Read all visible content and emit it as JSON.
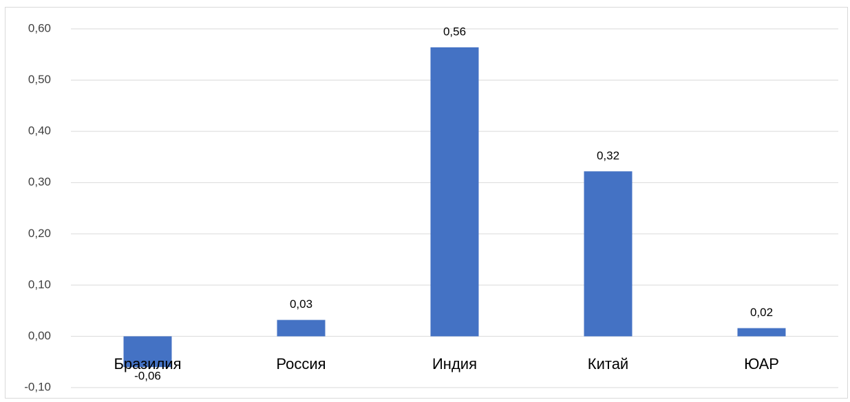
{
  "chart_data": {
    "type": "bar",
    "categories": [
      "Бразилия",
      "Россия",
      "Индия",
      "Китай",
      "ЮАР"
    ],
    "values": [
      -0.06,
      0.032,
      0.564,
      0.322,
      0.016
    ],
    "value_labels": [
      "-0,06",
      "0,03",
      "0,56",
      "0,32",
      "0,02"
    ],
    "color": "#4472c4",
    "ylim": [
      -0.1,
      0.6
    ],
    "yticks": [
      {
        "value": -0.1,
        "label": "-0,10"
      },
      {
        "value": 0,
        "label": "0,00"
      },
      {
        "value": 0.1,
        "label": "0,10"
      },
      {
        "value": 0.2,
        "label": "0,20"
      },
      {
        "value": 0.3,
        "label": "0,30"
      },
      {
        "value": 0.4,
        "label": "0,40"
      },
      {
        "value": 0.5,
        "label": "0,50"
      },
      {
        "value": 0.6,
        "label": "0,60"
      }
    ],
    "grid": true
  }
}
